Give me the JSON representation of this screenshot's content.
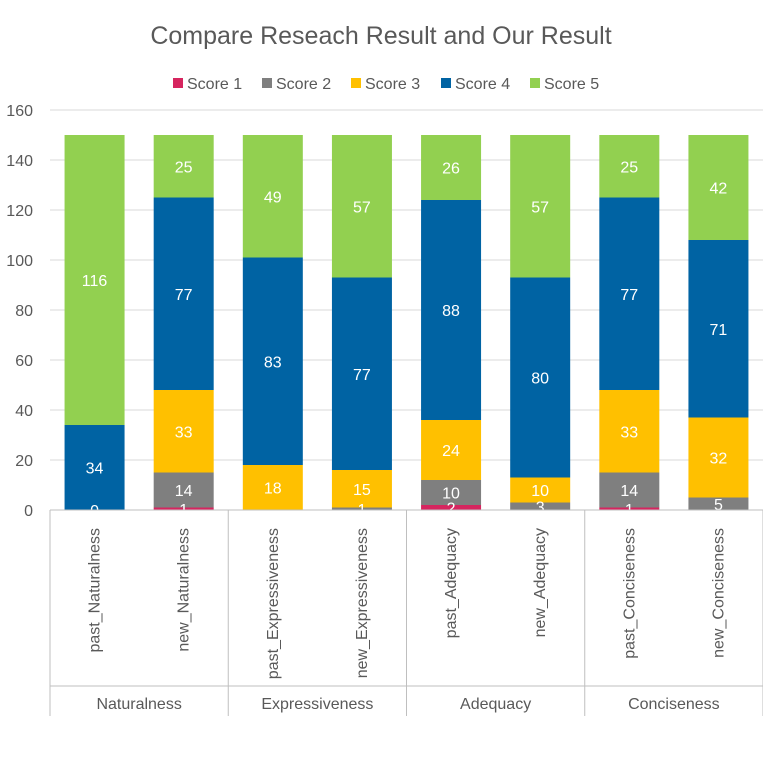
{
  "chart_data": {
    "type": "bar",
    "stacked": true,
    "title": "Compare Reseach Result and Our Result",
    "legend_position": "top",
    "ylim": [
      0,
      160
    ],
    "yticks": [
      0,
      20,
      40,
      60,
      80,
      100,
      120,
      140,
      160
    ],
    "grid": true,
    "categories": [
      "past_Naturalness",
      "new_Naturalness",
      "past_Expressiveness",
      "new_Expressiveness",
      "past_Adequacy",
      "new_Adequacy",
      "past_Conciseness",
      "new_Conciseness"
    ],
    "groups": [
      {
        "label": "Naturalness",
        "categories": [
          "past_Naturalness",
          "new_Naturalness"
        ]
      },
      {
        "label": "Expressiveness",
        "categories": [
          "past_Expressiveness",
          "new_Expressiveness"
        ]
      },
      {
        "label": "Adequacy",
        "categories": [
          "past_Adequacy",
          "new_Adequacy"
        ]
      },
      {
        "label": "Conciseness",
        "categories": [
          "past_Conciseness",
          "new_Conciseness"
        ]
      }
    ],
    "series": [
      {
        "name": "Score 1",
        "color": "#d6255f",
        "values": [
          0,
          1,
          0,
          0,
          2,
          0,
          1,
          0
        ]
      },
      {
        "name": "Score 2",
        "color": "#7f7f7f",
        "values": [
          0,
          14,
          0,
          1,
          10,
          3,
          14,
          5
        ]
      },
      {
        "name": "Score 3",
        "color": "#ffc000",
        "values": [
          0,
          33,
          18,
          15,
          24,
          10,
          33,
          32
        ]
      },
      {
        "name": "Score 4",
        "color": "#0063a3",
        "values": [
          34,
          77,
          83,
          77,
          88,
          80,
          77,
          71
        ]
      },
      {
        "name": "Score 5",
        "color": "#92d050",
        "values": [
          116,
          25,
          49,
          57,
          26,
          57,
          25,
          42
        ]
      }
    ],
    "data_labels": [
      [
        "0",
        "1",
        "",
        "",
        "2",
        "",
        "1",
        ""
      ],
      [
        "",
        "14",
        "",
        "1",
        "10",
        "3",
        "14",
        "5"
      ],
      [
        "",
        "33",
        "18",
        "15",
        "24",
        "10",
        "33",
        "32"
      ],
      [
        "34",
        "77",
        "83",
        "77",
        "88",
        "80",
        "77",
        "71"
      ],
      [
        "116",
        "25",
        "49",
        "57",
        "26",
        "57",
        "25",
        "42"
      ]
    ],
    "colors": {
      "grid": "#d9d9d9",
      "axis": "#bfbfbf",
      "text": "#595959",
      "label": "#ffffff"
    }
  }
}
